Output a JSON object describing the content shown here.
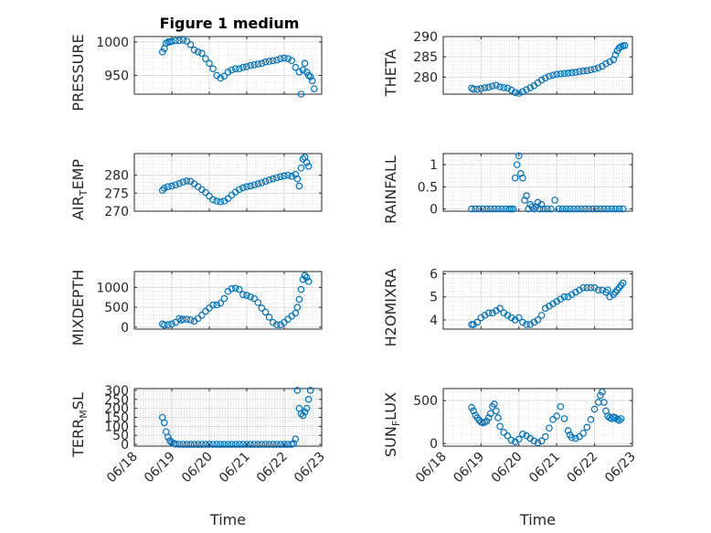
{
  "figure": {
    "title": "Figure 1 medium",
    "xlabel": "Time",
    "marker_color": "#0072BD",
    "grid": true
  },
  "chart_data": [
    {
      "type": "scatter",
      "ylabel": "PRESSURE",
      "xlim": [
        "06/18",
        "06/23"
      ],
      "ylim": [
        922,
        1008
      ],
      "yticks": [
        950,
        1000
      ],
      "x_ticks": [
        "06/18",
        "06/19",
        "06/20",
        "06/21",
        "06/22",
        "06/23"
      ],
      "series": [
        {
          "x": [
            0.75,
            0.8,
            0.85,
            0.9,
            0.95,
            1.0,
            1.1,
            1.2,
            1.3,
            1.4,
            1.5,
            1.6,
            1.7,
            1.8,
            1.9,
            2.0,
            2.1,
            2.2,
            2.3,
            2.4,
            2.5,
            2.6,
            2.7,
            2.8,
            2.9,
            3.0,
            3.1,
            3.2,
            3.3,
            3.4,
            3.5,
            3.6,
            3.7,
            3.8,
            3.9,
            4.0,
            4.1,
            4.2,
            4.3,
            4.4,
            4.45,
            4.5,
            4.55,
            4.6,
            4.65,
            4.7,
            4.75,
            4.8
          ],
          "y": [
            985,
            990,
            998,
            1000,
            1000,
            1001,
            1002,
            1002,
            1003,
            1001,
            996,
            988,
            985,
            983,
            975,
            968,
            960,
            950,
            946,
            949,
            955,
            958,
            960,
            960,
            962,
            963,
            965,
            966,
            967,
            968,
            970,
            971,
            972,
            973,
            975,
            976,
            975,
            972,
            962,
            955,
            922,
            958,
            968,
            955,
            950,
            948,
            942,
            930
          ]
        }
      ]
    },
    {
      "type": "scatter",
      "ylabel": "THETA",
      "xlim": [
        "06/18",
        "06/23"
      ],
      "ylim": [
        275.8,
        290
      ],
      "yticks": [
        280,
        285,
        290
      ],
      "x_ticks": [
        "06/18",
        "06/19",
        "06/20",
        "06/21",
        "06/22",
        "06/23"
      ],
      "series": [
        {
          "x": [
            0.75,
            0.8,
            0.9,
            1.0,
            1.1,
            1.2,
            1.3,
            1.4,
            1.5,
            1.6,
            1.7,
            1.8,
            1.9,
            2.0,
            2.1,
            2.2,
            2.3,
            2.4,
            2.5,
            2.6,
            2.7,
            2.8,
            2.9,
            3.0,
            3.1,
            3.2,
            3.3,
            3.4,
            3.5,
            3.6,
            3.7,
            3.8,
            3.9,
            4.0,
            4.1,
            4.2,
            4.3,
            4.4,
            4.5,
            4.55,
            4.6,
            4.65,
            4.7,
            4.75,
            4.8
          ],
          "y": [
            277.3,
            277.0,
            277.0,
            277.2,
            277.4,
            277.5,
            277.8,
            278.0,
            277.6,
            277.4,
            277.3,
            276.8,
            276.2,
            276.0,
            276.4,
            276.9,
            277.4,
            277.9,
            278.6,
            279.3,
            279.8,
            280.2,
            280.5,
            280.7,
            280.8,
            280.9,
            281.0,
            281.1,
            281.2,
            281.4,
            281.5,
            281.6,
            281.8,
            282.0,
            282.3,
            282.7,
            283.3,
            283.8,
            284.3,
            285.5,
            286.5,
            287.2,
            287.5,
            287.7,
            287.8
          ]
        }
      ]
    },
    {
      "type": "scatter",
      "ylabel": "AIR_TEMP",
      "xlim": [
        "06/18",
        "06/23"
      ],
      "ylim": [
        270,
        286
      ],
      "yticks": [
        270,
        275,
        280
      ],
      "x_ticks": [
        "06/18",
        "06/19",
        "06/20",
        "06/21",
        "06/22",
        "06/23"
      ],
      "series": [
        {
          "x": [
            0.75,
            0.8,
            0.9,
            1.0,
            1.1,
            1.2,
            1.3,
            1.4,
            1.5,
            1.6,
            1.7,
            1.8,
            1.9,
            2.0,
            2.1,
            2.2,
            2.3,
            2.4,
            2.5,
            2.6,
            2.7,
            2.8,
            2.9,
            3.0,
            3.1,
            3.2,
            3.3,
            3.4,
            3.5,
            3.6,
            3.7,
            3.8,
            3.9,
            4.0,
            4.1,
            4.2,
            4.3,
            4.35,
            4.4,
            4.45,
            4.5,
            4.55,
            4.6,
            4.65
          ],
          "y": [
            275.8,
            276.4,
            276.8,
            277.0,
            277.3,
            277.7,
            278.1,
            278.4,
            278.3,
            277.6,
            276.8,
            276.0,
            275.2,
            274.2,
            273.2,
            272.8,
            272.6,
            272.8,
            273.5,
            274.5,
            275.3,
            276.0,
            276.5,
            276.8,
            277.0,
            277.3,
            277.6,
            277.9,
            278.3,
            278.7,
            279.0,
            279.3,
            279.6,
            279.8,
            280.0,
            279.7,
            280.2,
            279.0,
            277.0,
            282.0,
            284.5,
            285.0,
            283.5,
            282.5
          ]
        }
      ]
    },
    {
      "type": "scatter",
      "ylabel": "RAINFALL",
      "xlim": [
        "06/18",
        "06/23"
      ],
      "ylim": [
        -0.05,
        1.25
      ],
      "yticks": [
        0,
        0.5,
        1
      ],
      "x_ticks": [
        "06/18",
        "06/19",
        "06/20",
        "06/21",
        "06/22",
        "06/23"
      ],
      "series": [
        {
          "x": [
            0.75,
            0.85,
            0.95,
            1.05,
            1.15,
            1.25,
            1.35,
            1.45,
            1.55,
            1.65,
            1.75,
            1.8,
            1.85,
            1.9,
            1.95,
            2.0,
            2.05,
            2.1,
            2.15,
            2.2,
            2.25,
            2.3,
            2.35,
            2.4,
            2.45,
            2.5,
            2.55,
            2.6,
            2.65,
            2.75,
            2.85,
            2.95,
            3.05,
            3.15,
            3.25,
            3.35,
            3.45,
            3.55,
            3.65,
            3.75,
            3.85,
            3.95,
            4.05,
            4.15,
            4.25,
            4.35,
            4.45,
            4.55,
            4.65,
            4.75
          ],
          "y": [
            0,
            0,
            0,
            0,
            0,
            0,
            0,
            0,
            0,
            0,
            0,
            0,
            0,
            0.7,
            1.0,
            1.2,
            0.8,
            0.7,
            0.2,
            0.3,
            0,
            0.1,
            0.05,
            0,
            0.05,
            0.15,
            0,
            0.1,
            0,
            0,
            0,
            0.2,
            0,
            0,
            0,
            0,
            0,
            0,
            0,
            0,
            0,
            0,
            0,
            0,
            0,
            0,
            0,
            0,
            0,
            0
          ]
        }
      ]
    },
    {
      "type": "scatter",
      "ylabel": "MIXDEPTH",
      "xlim": [
        "06/18",
        "06/23"
      ],
      "ylim": [
        -50,
        1400
      ],
      "yticks": [
        0,
        500,
        1000
      ],
      "x_ticks": [
        "06/18",
        "06/19",
        "06/20",
        "06/21",
        "06/22",
        "06/23"
      ],
      "series": [
        {
          "x": [
            0.75,
            0.8,
            0.9,
            1.0,
            1.1,
            1.2,
            1.25,
            1.3,
            1.4,
            1.5,
            1.6,
            1.7,
            1.8,
            1.9,
            2.0,
            2.1,
            2.2,
            2.3,
            2.4,
            2.5,
            2.6,
            2.7,
            2.8,
            2.9,
            3.0,
            3.1,
            3.2,
            3.3,
            3.4,
            3.5,
            3.6,
            3.7,
            3.8,
            3.9,
            4.0,
            4.1,
            4.2,
            4.3,
            4.35,
            4.4,
            4.45,
            4.5,
            4.55,
            4.6,
            4.65
          ],
          "y": [
            80,
            50,
            60,
            80,
            120,
            220,
            180,
            200,
            200,
            180,
            150,
            220,
            300,
            400,
            480,
            560,
            560,
            600,
            720,
            900,
            970,
            980,
            950,
            820,
            800,
            760,
            720,
            620,
            480,
            380,
            250,
            120,
            60,
            60,
            120,
            200,
            280,
            350,
            500,
            700,
            950,
            1200,
            1300,
            1250,
            1150
          ]
        }
      ]
    },
    {
      "type": "scatter",
      "ylabel": "H2OMIXRA",
      "xlim": [
        "06/18",
        "06/23"
      ],
      "ylim": [
        3.6,
        6.1
      ],
      "yticks": [
        4,
        5,
        6
      ],
      "x_ticks": [
        "06/18",
        "06/19",
        "06/20",
        "06/21",
        "06/22",
        "06/23"
      ],
      "series": [
        {
          "x": [
            0.75,
            0.8,
            0.9,
            1.0,
            1.1,
            1.2,
            1.3,
            1.4,
            1.5,
            1.6,
            1.7,
            1.8,
            1.9,
            2.0,
            2.1,
            2.2,
            2.3,
            2.4,
            2.5,
            2.6,
            2.7,
            2.8,
            2.9,
            3.0,
            3.1,
            3.2,
            3.3,
            3.4,
            3.5,
            3.6,
            3.7,
            3.8,
            3.9,
            4.0,
            4.1,
            4.2,
            4.3,
            4.35,
            4.4,
            4.5,
            4.55,
            4.6,
            4.65,
            4.7,
            4.75
          ],
          "y": [
            3.8,
            3.8,
            3.9,
            4.1,
            4.2,
            4.3,
            4.3,
            4.4,
            4.5,
            4.3,
            4.2,
            4.1,
            4.0,
            4.1,
            3.9,
            3.8,
            3.8,
            3.9,
            4.0,
            4.2,
            4.5,
            4.6,
            4.7,
            4.8,
            4.9,
            5.0,
            5.0,
            5.1,
            5.2,
            5.3,
            5.4,
            5.4,
            5.4,
            5.4,
            5.3,
            5.3,
            5.2,
            5.3,
            5.0,
            5.1,
            5.2,
            5.3,
            5.4,
            5.5,
            5.6
          ]
        }
      ]
    },
    {
      "type": "scatter",
      "ylabel": "TERR_MSL",
      "xlim": [
        "06/18",
        "06/23"
      ],
      "ylim": [
        -10,
        310
      ],
      "yticks": [
        0,
        50,
        100,
        150,
        200,
        250,
        300
      ],
      "x_ticks": [
        "06/18",
        "06/19",
        "06/20",
        "06/21",
        "06/22",
        "06/23"
      ],
      "series": [
        {
          "x": [
            0.75,
            0.8,
            0.85,
            0.9,
            0.95,
            1.0,
            1.05,
            1.1,
            1.2,
            1.3,
            1.4,
            1.5,
            1.6,
            1.7,
            1.8,
            1.9,
            2.0,
            2.1,
            2.2,
            2.3,
            2.4,
            2.5,
            2.6,
            2.7,
            2.8,
            2.9,
            3.0,
            3.1,
            3.2,
            3.3,
            3.4,
            3.5,
            3.6,
            3.7,
            3.8,
            3.9,
            4.0,
            4.1,
            4.2,
            4.25,
            4.3,
            4.35,
            4.4,
            4.45,
            4.5,
            4.55,
            4.6,
            4.65,
            4.7
          ],
          "y": [
            150,
            120,
            70,
            40,
            20,
            10,
            5,
            2,
            0,
            0,
            0,
            0,
            0,
            0,
            0,
            0,
            0,
            0,
            0,
            0,
            0,
            0,
            0,
            0,
            0,
            0,
            0,
            0,
            0,
            0,
            0,
            0,
            0,
            0,
            0,
            0,
            0,
            0,
            0,
            5,
            30,
            300,
            200,
            170,
            160,
            180,
            200,
            250,
            300
          ]
        }
      ]
    },
    {
      "type": "scatter",
      "ylabel": "SUN_FLUX",
      "xlim": [
        "06/18",
        "06/23"
      ],
      "ylim": [
        -30,
        640
      ],
      "yticks": [
        0,
        500
      ],
      "x_ticks": [
        "06/18",
        "06/19",
        "06/20",
        "06/21",
        "06/22",
        "06/23"
      ],
      "series": [
        {
          "x": [
            0.75,
            0.8,
            0.85,
            0.9,
            0.95,
            1.0,
            1.05,
            1.1,
            1.15,
            1.2,
            1.25,
            1.3,
            1.35,
            1.4,
            1.45,
            1.5,
            1.6,
            1.7,
            1.8,
            1.9,
            2.0,
            2.1,
            2.2,
            2.3,
            2.4,
            2.5,
            2.6,
            2.7,
            2.8,
            2.9,
            3.0,
            3.1,
            3.2,
            3.3,
            3.35,
            3.4,
            3.5,
            3.6,
            3.7,
            3.8,
            3.9,
            4.0,
            4.1,
            4.15,
            4.2,
            4.25,
            4.3,
            4.35,
            4.4,
            4.45,
            4.5,
            4.55,
            4.6,
            4.65,
            4.7
          ],
          "y": [
            420,
            380,
            330,
            300,
            270,
            250,
            240,
            250,
            260,
            300,
            350,
            430,
            460,
            380,
            300,
            200,
            130,
            90,
            40,
            20,
            50,
            110,
            90,
            60,
            30,
            10,
            30,
            80,
            180,
            280,
            320,
            430,
            290,
            150,
            100,
            70,
            60,
            80,
            120,
            190,
            280,
            400,
            480,
            560,
            600,
            480,
            380,
            320,
            300,
            290,
            310,
            300,
            280,
            270,
            290
          ]
        }
      ]
    }
  ]
}
